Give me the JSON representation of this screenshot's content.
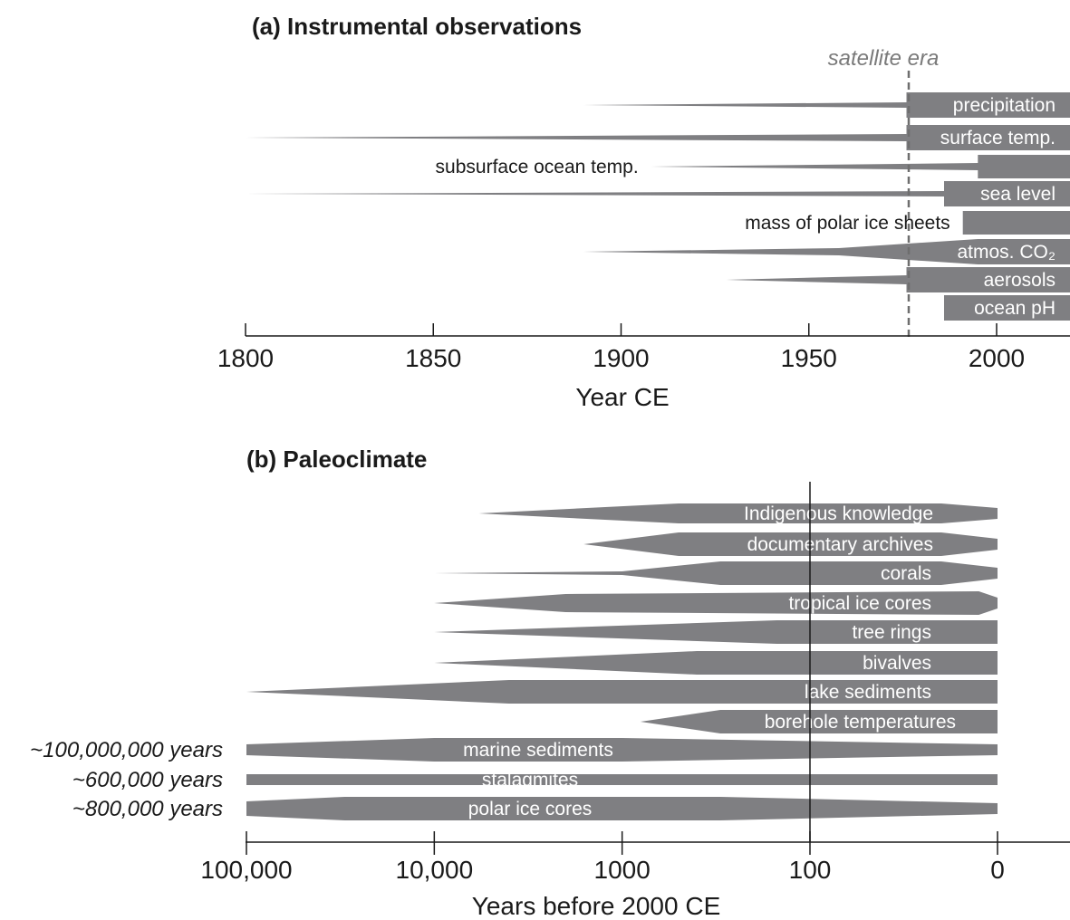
{
  "chart_data": [
    {
      "type": "bar",
      "title": "(a) Instrumental observations",
      "xlabel": "Year CE",
      "xlim": [
        1800,
        2020
      ],
      "xticks": [
        "1800",
        "1850",
        "1900",
        "1950",
        "2000"
      ],
      "annotation": {
        "text": "satellite era",
        "x": 1976
      },
      "bar_color": "#7f7f82",
      "series": [
        {
          "name": "precipitation",
          "label_inside": true,
          "profile": [
            [
              1890,
              0
            ],
            [
              1976,
              6
            ],
            [
              1976,
              28
            ],
            [
              2020,
              28
            ]
          ]
        },
        {
          "name": "surface temp.",
          "label_inside": true,
          "profile": [
            [
              1800,
              0
            ],
            [
              1976,
              8
            ],
            [
              1976,
              28
            ],
            [
              2020,
              28
            ]
          ]
        },
        {
          "name": "subsurface ocean temp.",
          "label_inside": false,
          "profile": [
            [
              1908,
              0
            ],
            [
              1995,
              8
            ],
            [
              1995,
              26
            ],
            [
              2020,
              26
            ]
          ]
        },
        {
          "name": "sea level",
          "label_inside": true,
          "profile": [
            [
              1800,
              0
            ],
            [
              1986,
              6
            ],
            [
              1986,
              28
            ],
            [
              2020,
              28
            ]
          ]
        },
        {
          "name": "mass of polar ice sheets",
          "label_inside": false,
          "profile": [
            [
              1991,
              26
            ],
            [
              2020,
              26
            ]
          ]
        },
        {
          "name": "atmos. CO₂",
          "label_inside": true,
          "profile": [
            [
              1890,
              0
            ],
            [
              1958,
              8
            ],
            [
              1995,
              28
            ],
            [
              2020,
              28
            ]
          ]
        },
        {
          "name": "aerosols",
          "label_inside": true,
          "profile": [
            [
              1928,
              0
            ],
            [
              1976,
              10
            ],
            [
              1976,
              28
            ],
            [
              2020,
              28
            ]
          ]
        },
        {
          "name": "ocean pH",
          "label_inside": true,
          "profile": [
            [
              1986,
              28
            ],
            [
              2020,
              28
            ]
          ]
        }
      ]
    },
    {
      "type": "bar",
      "title": "(b) Paleoclimate",
      "xlabel": "Years before 2000 CE",
      "xscale": "log",
      "xlim": [
        100000,
        0
      ],
      "xticks": [
        "100,000",
        "10,000",
        "1000",
        "100",
        "0"
      ],
      "reference_line": 100,
      "bar_color": "#7f7f82",
      "series": [
        {
          "name": "Indigenous knowledge",
          "label_inside": true,
          "profile": [
            [
              5800,
              0
            ],
            [
              500,
              22
            ],
            [
              30,
              22
            ],
            [
              0,
              12
            ]
          ]
        },
        {
          "name": "documentary archives",
          "label_inside": true,
          "profile": [
            [
              1600,
              0
            ],
            [
              500,
              26
            ],
            [
              30,
              26
            ],
            [
              0,
              12
            ]
          ]
        },
        {
          "name": "corals",
          "label_inside": true,
          "profile": [
            [
              10000,
              0
            ],
            [
              1000,
              4
            ],
            [
              300,
              26
            ],
            [
              30,
              26
            ],
            [
              0,
              12
            ]
          ]
        },
        {
          "name": "tropical ice cores",
          "label_inside": true,
          "profile": [
            [
              10000,
              0
            ],
            [
              2000,
              20
            ],
            [
              10,
              26
            ],
            [
              0,
              12
            ]
          ]
        },
        {
          "name": "tree rings",
          "label_inside": true,
          "profile": [
            [
              10000,
              0
            ],
            [
              150,
              26
            ],
            [
              5,
              26
            ],
            [
              0,
              26
            ]
          ]
        },
        {
          "name": "bivalves",
          "label_inside": true,
          "profile": [
            [
              10000,
              0
            ],
            [
              400,
              26
            ],
            [
              0,
              26
            ]
          ]
        },
        {
          "name": "lake sediments",
          "label_inside": true,
          "profile": [
            [
              100000,
              0
            ],
            [
              4000,
              26
            ],
            [
              0,
              26
            ]
          ]
        },
        {
          "name": "borehole temperatures",
          "label_inside": true,
          "profile": [
            [
              800,
              0
            ],
            [
              300,
              26
            ],
            [
              0,
              26
            ]
          ]
        },
        {
          "name": "marine sediments",
          "label_inside": true,
          "range_label": "~100,000,000 years",
          "profile": [
            [
              100000,
              12
            ],
            [
              10000,
              26
            ],
            [
              1000,
              26
            ],
            [
              0,
              12
            ]
          ]
        },
        {
          "name": "stalagmites",
          "label_inside": true,
          "range_label": "~600,000 years",
          "profile": [
            [
              100000,
              12
            ],
            [
              0,
              12
            ]
          ]
        },
        {
          "name": "polar ice cores",
          "label_inside": true,
          "range_label": "~800,000 years",
          "profile": [
            [
              100000,
              16
            ],
            [
              30000,
              26
            ],
            [
              300,
              26
            ],
            [
              0,
              12
            ]
          ]
        }
      ]
    }
  ]
}
